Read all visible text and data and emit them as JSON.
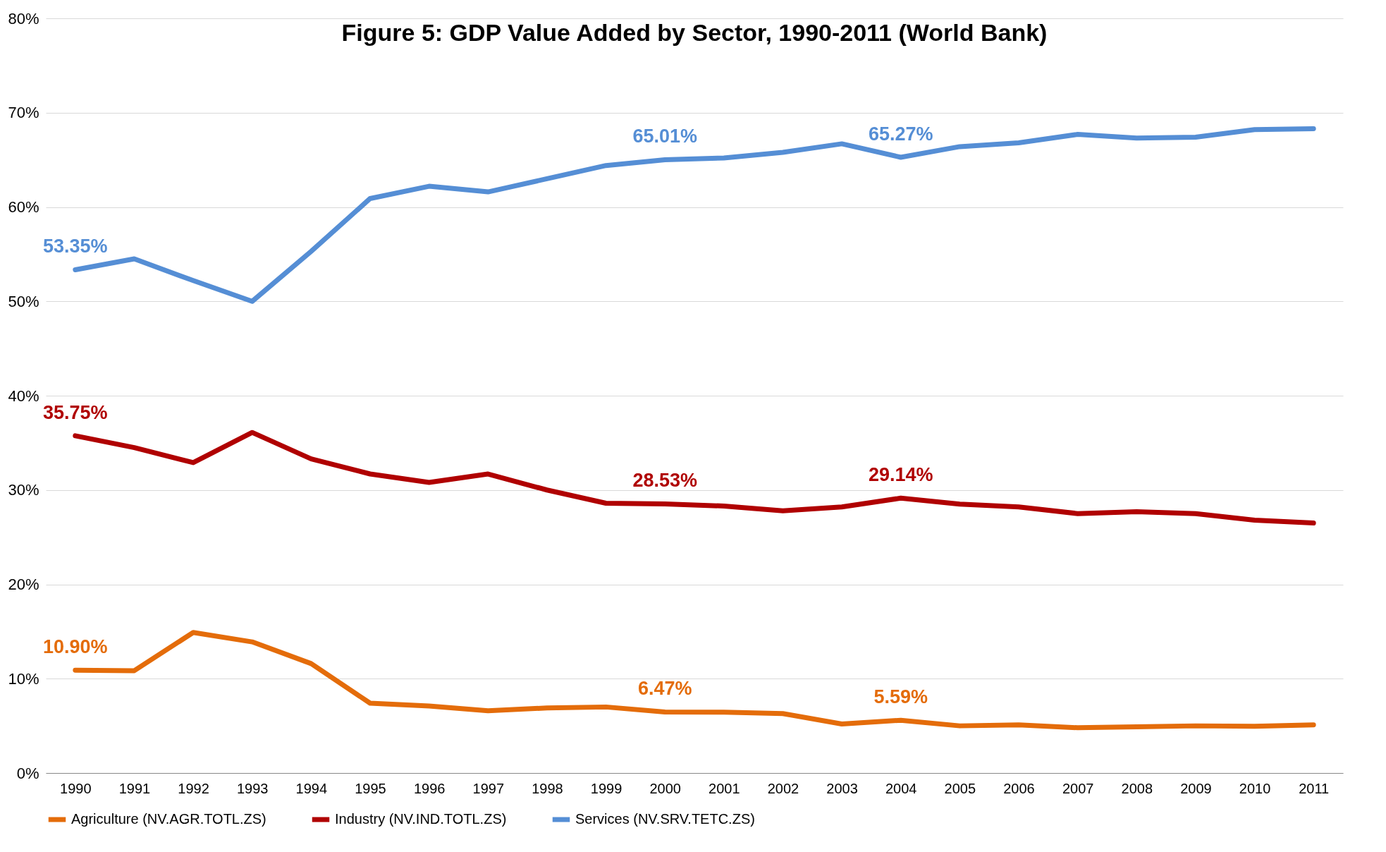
{
  "chart_data": {
    "type": "line",
    "title": "Figure 5: GDP Value Added by Sector, 1990-2011 (World Bank)",
    "categories": [
      "1990",
      "1991",
      "1992",
      "1993",
      "1994",
      "1995",
      "1996",
      "1997",
      "1998",
      "1999",
      "2000",
      "2001",
      "2002",
      "2003",
      "2004",
      "2005",
      "2006",
      "2007",
      "2008",
      "2009",
      "2010",
      "2011"
    ],
    "series": [
      {
        "name": "Agriculture (NV.AGR.TOTL.ZS)",
        "color": "#e46c0a",
        "values": [
          10.9,
          10.85,
          14.9,
          13.9,
          11.6,
          7.4,
          7.1,
          6.6,
          6.9,
          7.0,
          6.47,
          6.45,
          6.3,
          5.2,
          5.59,
          5.0,
          5.1,
          4.8,
          4.9,
          5.0,
          4.95,
          5.1
        ],
        "value_labels": [
          "10.90%",
          null,
          null,
          null,
          null,
          null,
          null,
          null,
          null,
          null,
          "6.47%",
          null,
          null,
          null,
          "5.59%",
          null,
          null,
          null,
          null,
          null,
          null,
          null
        ]
      },
      {
        "name": "Industry (NV.IND.TOTL.ZS)",
        "color": "#b00000",
        "values": [
          35.75,
          34.5,
          32.9,
          36.1,
          33.3,
          31.7,
          30.8,
          31.7,
          30.0,
          28.6,
          28.53,
          28.3,
          27.8,
          28.2,
          29.14,
          28.5,
          28.2,
          27.5,
          27.7,
          27.5,
          26.8,
          26.5
        ],
        "value_labels": [
          "35.75%",
          null,
          null,
          null,
          null,
          null,
          null,
          null,
          null,
          null,
          "28.53%",
          null,
          null,
          null,
          "29.14%",
          null,
          null,
          null,
          null,
          null,
          null,
          null
        ]
      },
      {
        "name": "Services (NV.SRV.TETC.ZS)",
        "color": "#558ed5",
        "values": [
          53.35,
          54.5,
          52.2,
          50.0,
          55.3,
          60.9,
          62.2,
          61.6,
          63.0,
          64.4,
          65.01,
          65.2,
          65.8,
          66.7,
          65.27,
          66.4,
          66.8,
          67.7,
          67.3,
          67.4,
          68.2,
          68.3
        ],
        "value_labels": [
          "53.35%",
          null,
          null,
          null,
          null,
          null,
          null,
          null,
          null,
          null,
          "65.01%",
          null,
          null,
          null,
          "65.27%",
          null,
          null,
          null,
          null,
          null,
          null,
          null
        ]
      }
    ],
    "ylim": [
      0,
      80
    ],
    "yticks": [
      {
        "value": 0,
        "label": "0%"
      },
      {
        "value": 10,
        "label": "10%"
      },
      {
        "value": 20,
        "label": "20%"
      },
      {
        "value": 30,
        "label": "30%"
      },
      {
        "value": 40,
        "label": "40%"
      },
      {
        "value": 50,
        "label": "50%"
      },
      {
        "value": 60,
        "label": "60%"
      },
      {
        "value": 70,
        "label": "70%"
      },
      {
        "value": 80,
        "label": "80%"
      }
    ],
    "grid": "y",
    "legend": "bottom",
    "marker": "none",
    "line_style": "solid"
  }
}
